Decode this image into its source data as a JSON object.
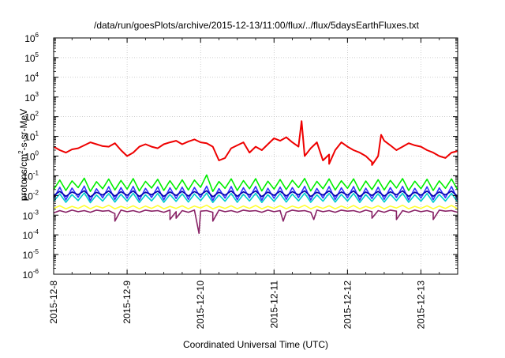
{
  "chart_data": {
    "type": "line",
    "title": "/data/run/goesPlots/archive/2015-12-13/11:00/flux/../flux/5daysEarthFluxes.txt",
    "xlabel": "Coordinated Universal Time (UTC)",
    "ylabel_parts": [
      "protons/cm",
      "2",
      "-s-sr-MeV"
    ],
    "yscale": "log",
    "ylim": [
      1e-06,
      1000000.0
    ],
    "xlim": [
      "2015-12-08T00:00",
      "2015-12-13T12:00"
    ],
    "y_ticks": [
      {
        "base": "10",
        "exp": "-6"
      },
      {
        "base": "10",
        "exp": "-5"
      },
      {
        "base": "10",
        "exp": "-4"
      },
      {
        "base": "10",
        "exp": "-3"
      },
      {
        "base": "10",
        "exp": "-2"
      },
      {
        "base": "10",
        "exp": "-1"
      },
      {
        "base": "10",
        "exp": "0"
      },
      {
        "base": "10",
        "exp": "1"
      },
      {
        "base": "10",
        "exp": "2"
      },
      {
        "base": "10",
        "exp": "3"
      },
      {
        "base": "10",
        "exp": "4"
      },
      {
        "base": "10",
        "exp": "5"
      },
      {
        "base": "10",
        "exp": "6"
      }
    ],
    "x_ticks": [
      "2015-12-8",
      "2015-12-9",
      "2015-12-10",
      "2015-12-11",
      "2015-12-12",
      "2015-12-13"
    ],
    "grid": true,
    "series": [
      {
        "color": "#ffff33",
        "x_step_hours": 2,
        "values": [
          0.0022,
          0.003,
          0.0021,
          0.0028,
          0.0022,
          0.0031,
          0.0021,
          0.0029,
          0.0023,
          0.0032,
          0.0021,
          0.0028,
          0.0022,
          0.003,
          0.0021,
          0.0029,
          0.0022,
          0.0031,
          0.0021,
          0.0028,
          0.0022,
          0.003,
          0.0021,
          0.0029,
          0.0023,
          0.0032,
          0.0021,
          0.0028,
          0.0022,
          0.003,
          0.0021,
          0.0029,
          0.0022,
          0.0031,
          0.0021,
          0.0028,
          0.0022,
          0.003,
          0.0021,
          0.0029,
          0.0023,
          0.0032,
          0.0021,
          0.0028,
          0.0022,
          0.003,
          0.0021,
          0.0029,
          0.0022,
          0.0031,
          0.0021,
          0.0028,
          0.0022,
          0.003,
          0.0021,
          0.0029,
          0.0023,
          0.0032,
          0.0021,
          0.0028,
          0.0022,
          0.003,
          0.0021,
          0.0029,
          0.0022,
          0.0031,
          0.0021
        ]
      },
      {
        "color": "#00cccc",
        "x_step_hours": 2,
        "values": [
          0.005,
          0.012,
          0.0045,
          0.011,
          0.0055,
          0.0135,
          0.0043,
          0.0105,
          0.0052,
          0.0125,
          0.0046,
          0.0115,
          0.0051,
          0.013,
          0.0044,
          0.0108,
          0.0053,
          0.0128,
          0.0045,
          0.0112,
          0.005,
          0.0122,
          0.0046,
          0.0118,
          0.0054,
          0.0132,
          0.0044,
          0.0106,
          0.0051,
          0.0126,
          0.0045,
          0.0114,
          0.0052,
          0.0129,
          0.0044,
          0.0109,
          0.005,
          0.0124,
          0.0046,
          0.0117,
          0.0053,
          0.0131,
          0.0045,
          0.0107,
          0.0051,
          0.0127,
          0.0046,
          0.0113,
          0.0052,
          0.0128,
          0.0044,
          0.011,
          0.005,
          0.0123,
          0.0046,
          0.0116,
          0.0054,
          0.013,
          0.0045,
          0.0108,
          0.0051,
          0.0125,
          0.0045,
          0.0112,
          0.0052,
          0.0127,
          0.0046
        ]
      },
      {
        "color": "#3333ff",
        "x_step_hours": 2,
        "values": [
          0.007,
          0.026,
          0.006,
          0.024,
          0.008,
          0.03,
          0.0055,
          0.022,
          0.0075,
          0.028,
          0.0062,
          0.025,
          0.0072,
          0.029,
          0.0058,
          0.023,
          0.0078,
          0.0275,
          0.006,
          0.0245,
          0.007,
          0.0265,
          0.0063,
          0.0255,
          0.0079,
          0.0295,
          0.0056,
          0.0225,
          0.0073,
          0.0285,
          0.0061,
          0.0248,
          0.0076,
          0.0288,
          0.0057,
          0.0232,
          0.0071,
          0.0268,
          0.0064,
          0.0252,
          0.0077,
          0.0292,
          0.0059,
          0.0228,
          0.0074,
          0.0282,
          0.0062,
          0.0246,
          0.0075,
          0.0286,
          0.0058,
          0.0234,
          0.007,
          0.0262,
          0.0063,
          0.025,
          0.0078,
          0.029,
          0.006,
          0.023,
          0.0073,
          0.0276,
          0.0061,
          0.0244,
          0.0076,
          0.0284,
          0.0062
        ]
      },
      {
        "color": "#0000aa",
        "x_step_hours": 2,
        "values": [
          0.01,
          0.016,
          0.009,
          0.015,
          0.011,
          0.0175,
          0.0085,
          0.0145,
          0.0105,
          0.0168,
          0.0092,
          0.0155,
          0.0102,
          0.0172,
          0.0088,
          0.0148,
          0.0108,
          0.0165,
          0.009,
          0.0152,
          0.01,
          0.0162,
          0.0093,
          0.0158,
          0.0109,
          0.0174,
          0.0086,
          0.0146,
          0.0103,
          0.017,
          0.0091,
          0.0153,
          0.0106,
          0.0171,
          0.0087,
          0.0149,
          0.0101,
          0.0163,
          0.0094,
          0.0156,
          0.0107,
          0.0173,
          0.0089,
          0.0147,
          0.0104,
          0.0169,
          0.0092,
          0.0151,
          0.0105,
          0.017,
          0.0088,
          0.015,
          0.01,
          0.0161,
          0.0093,
          0.0154,
          0.0108,
          0.0172,
          0.009,
          0.0148,
          0.0103,
          0.0166,
          0.0091,
          0.0152,
          0.0106,
          0.0168,
          0.0092
        ]
      },
      {
        "color": "#00ee00",
        "x_step_hours": 2,
        "values": [
          0.02,
          0.06,
          0.018,
          0.055,
          0.025,
          0.075,
          0.016,
          0.05,
          0.022,
          0.068,
          0.019,
          0.058,
          0.021,
          0.072,
          0.017,
          0.052,
          0.024,
          0.066,
          0.018,
          0.056,
          0.02,
          0.062,
          0.019,
          0.06,
          0.026,
          0.11,
          0.016,
          0.051,
          0.023,
          0.07,
          0.018,
          0.057,
          0.022,
          0.071,
          0.017,
          0.053,
          0.021,
          0.064,
          0.02,
          0.059,
          0.025,
          0.073,
          0.017,
          0.052,
          0.022,
          0.069,
          0.019,
          0.056,
          0.023,
          0.07,
          0.017,
          0.054,
          0.02,
          0.063,
          0.019,
          0.058,
          0.024,
          0.072,
          0.018,
          0.053,
          0.022,
          0.067,
          0.018,
          0.055,
          0.023,
          0.069,
          0.019
        ]
      },
      {
        "color": "#882266",
        "x_step_hours": 2,
        "values": [
          0.0013,
          0.0017,
          0.0014,
          0.0018,
          0.0015,
          0.0017,
          0.0014,
          0.0018,
          0.0016,
          0.0017,
          0.0012,
          0.0018,
          0.0015,
          0.0017,
          0.0014,
          0.0018,
          0.0016,
          0.0017,
          0.0014,
          0.0018,
          0.0015,
          0.0017,
          0.0014,
          0.0018,
          0.0016,
          0.0017,
          0.0014,
          0.0018,
          0.0015,
          0.0017,
          0.0014,
          0.0018,
          0.0016,
          0.0017,
          0.0014,
          0.0018,
          0.0015,
          0.0017,
          0.0014,
          0.0018,
          0.0016,
          0.0017,
          0.0014,
          0.0018,
          0.0015,
          0.0017,
          0.0014,
          0.0018,
          0.0016,
          0.0017,
          0.0014,
          0.0018,
          0.0015,
          0.0017,
          0.0014,
          0.0018,
          0.0016,
          0.0017,
          0.0014,
          0.0018,
          0.0015,
          0.0017,
          0.0014,
          0.0018,
          0.0016,
          0.0017,
          0.0014
        ]
      },
      {
        "color": "#ee0000",
        "x_step_hours": 2,
        "values": [
          3.0,
          2.0,
          1.5,
          2.2,
          2.5,
          3.5,
          5.0,
          4.0,
          3.2,
          3.0,
          4.5,
          2.0,
          1.0,
          1.5,
          3.0,
          4.0,
          3.0,
          2.5,
          4.0,
          5.0,
          6.0,
          4.0,
          5.5,
          7.0,
          5.0,
          4.5,
          3.0,
          0.6,
          0.8,
          2.5,
          3.5,
          5.0,
          1.5,
          3.0,
          2.0,
          4.0,
          8.0,
          6.0,
          9.0,
          5.0,
          3.0,
          1.0,
          2.5,
          5.0,
          0.6,
          1.2,
          2.0,
          5.0,
          3.0,
          2.0,
          1.5,
          1.0,
          0.5,
          1.0,
          6.0,
          3.5,
          2.0,
          3.0,
          4.5,
          3.5,
          3.0,
          2.0,
          1.5,
          1.0,
          0.8,
          1.5,
          1.8
        ]
      }
    ],
    "dip_points": [
      {
        "series_index": 5,
        "x_hours": 20,
        "value": 0.0005
      },
      {
        "series_index": 5,
        "x_hours": 40,
        "value": 0.0007
      },
      {
        "series_index": 5,
        "x_hours": 38,
        "value": 0.0006
      },
      {
        "series_index": 5,
        "x_hours": 47.5,
        "value": 0.00012
      },
      {
        "series_index": 5,
        "x_hours": 52,
        "value": 0.0005
      },
      {
        "series_index": 5,
        "x_hours": 75,
        "value": 0.0005
      },
      {
        "series_index": 5,
        "x_hours": 85,
        "value": 0.0006
      },
      {
        "series_index": 5,
        "x_hours": 104,
        "value": 0.0007
      },
      {
        "series_index": 5,
        "x_hours": 112,
        "value": 0.0006
      },
      {
        "series_index": 5,
        "x_hours": 124,
        "value": 0.0006
      },
      {
        "series_index": 6,
        "x_hours": 81,
        "value": 60
      },
      {
        "series_index": 6,
        "x_hours": 90,
        "value": 0.4
      },
      {
        "series_index": 6,
        "x_hours": 107,
        "value": 12
      },
      {
        "series_index": 6,
        "x_hours": 104,
        "value": 0.35
      }
    ]
  }
}
